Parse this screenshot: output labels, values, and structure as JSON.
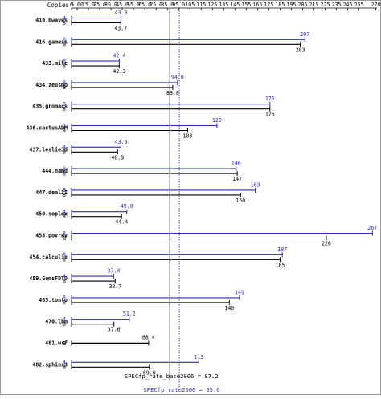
{
  "chart_data": {
    "type": "bar",
    "subtype": "horizontal-range-bars",
    "copies_header": "Copies",
    "x_ticks": [
      "0",
      "5.00",
      "15.0",
      "25.0",
      "35.0",
      "45.0",
      "55.0",
      "65.0",
      "75.0",
      "85.0",
      "95.0",
      "105",
      "115",
      "125",
      "135",
      "145",
      "155",
      "165",
      "175",
      "185",
      "195",
      "205",
      "215",
      "225",
      "235",
      "245",
      "255",
      "270"
    ],
    "x_tick_values": [
      0,
      5,
      15,
      25,
      35,
      45,
      55,
      65,
      75,
      85,
      95,
      105,
      115,
      125,
      135,
      145,
      155,
      165,
      175,
      185,
      195,
      205,
      215,
      225,
      235,
      245,
      255,
      270
    ],
    "xlim": [
      0,
      271
    ],
    "benchmarks": [
      {
        "name": "410.bwaves",
        "peak_copies": "4",
        "base_copies": "8",
        "peak": 43.9,
        "peak_label": "43.9",
        "base": 43.7,
        "base_label": "43.7"
      },
      {
        "name": "416.gamess",
        "peak_copies": "8",
        "base_copies": "8",
        "peak": 207,
        "peak_label": "207",
        "base": 203,
        "base_label": "203"
      },
      {
        "name": "433.milc",
        "peak_copies": "8",
        "base_copies": "8",
        "peak": 42.4,
        "peak_label": "42.4",
        "base": 42.3,
        "base_label": "42.3"
      },
      {
        "name": "434.zeusmp",
        "peak_copies": "8",
        "base_copies": "8",
        "peak": 94.0,
        "peak_label": "94.0",
        "base": 89.8,
        "base_label": "89.8"
      },
      {
        "name": "435.gromacs",
        "peak_copies": "8",
        "base_copies": "8",
        "peak": 176,
        "peak_label": "176",
        "base": 176,
        "base_label": "176"
      },
      {
        "name": "436.cactusADM",
        "peak_copies": "1",
        "base_copies": "8",
        "peak": 129,
        "peak_label": "129",
        "base": 103,
        "base_label": "103"
      },
      {
        "name": "437.leslie3d",
        "peak_copies": "4",
        "base_copies": "8",
        "peak": 43.9,
        "peak_label": "43.9",
        "base": 40.9,
        "base_label": "40.9"
      },
      {
        "name": "444.namd",
        "peak_copies": "8",
        "base_copies": "8",
        "peak": 146,
        "peak_label": "146",
        "base": 147,
        "base_label": "147"
      },
      {
        "name": "447.dealII",
        "peak_copies": "8",
        "base_copies": "8",
        "peak": 163,
        "peak_label": "163",
        "base": 150,
        "base_label": "150"
      },
      {
        "name": "450.soplex",
        "peak_copies": "4",
        "base_copies": "8",
        "peak": 49.0,
        "peak_label": "49.0",
        "base": 44.4,
        "base_label": "44.4"
      },
      {
        "name": "453.povray",
        "peak_copies": "8",
        "base_copies": "8",
        "peak": 267,
        "peak_label": "267",
        "base": 226,
        "base_label": "226"
      },
      {
        "name": "454.calculix",
        "peak_copies": "8",
        "base_copies": "8",
        "peak": 187,
        "peak_label": "187",
        "base": 185,
        "base_label": "185"
      },
      {
        "name": "459.GemsFDTD",
        "peak_copies": "4",
        "base_copies": "8",
        "peak": 37.4,
        "peak_label": "37.4",
        "base": 38.7,
        "base_label": "38.7"
      },
      {
        "name": "465.tonto",
        "peak_copies": "8",
        "base_copies": "8",
        "peak": 149,
        "peak_label": "149",
        "base": 140,
        "base_label": "140"
      },
      {
        "name": "470.lbm",
        "peak_copies": "4",
        "base_copies": "8",
        "peak": 51.2,
        "peak_label": "51.2",
        "base": 37.6,
        "base_label": "37.6"
      },
      {
        "name": "481.wrf",
        "peak_copies": null,
        "base_copies": "8",
        "peak": null,
        "peak_label": null,
        "base": 68.4,
        "base_label": "68.4"
      },
      {
        "name": "482.sphinx3",
        "peak_copies": "4",
        "base_copies": "8",
        "peak": 113,
        "peak_label": "113",
        "base": 69.0,
        "base_label": "69.0"
      }
    ],
    "base_summary": {
      "label": "SPECfp_rate_base2006 = 87.2",
      "value": 87.2
    },
    "peak_summary": {
      "label": "SPECfp_rate2006 = 95.6",
      "value": 95.6
    },
    "colors": {
      "peak": "#2d2db4",
      "base": "#000000",
      "text": "#000000",
      "peak_text": "#2d2db4"
    }
  }
}
